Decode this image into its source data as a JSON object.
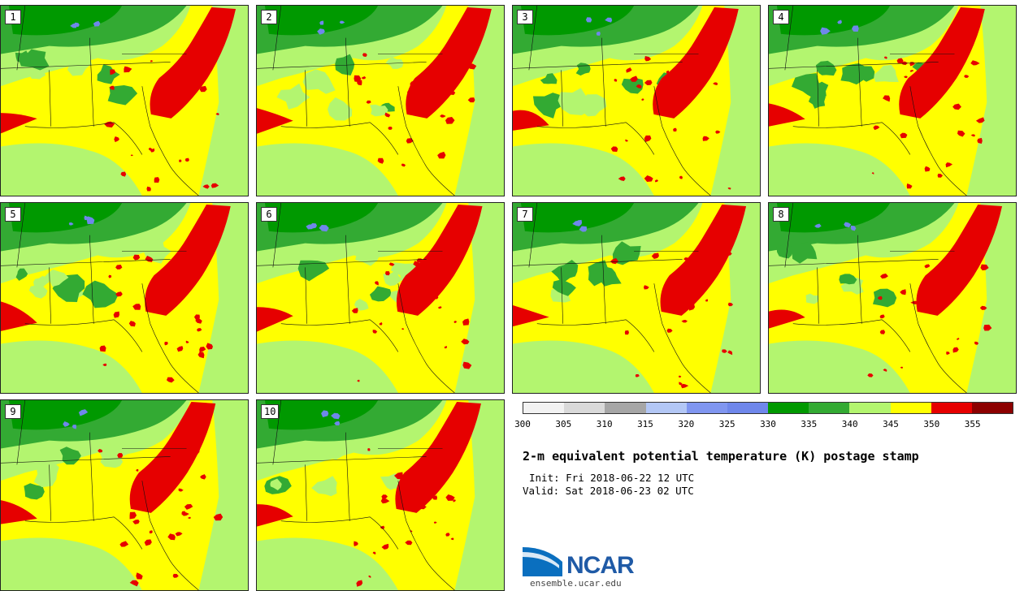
{
  "panels": [
    {
      "label": "1"
    },
    {
      "label": "2"
    },
    {
      "label": "3"
    },
    {
      "label": "4"
    },
    {
      "label": "5"
    },
    {
      "label": "6"
    },
    {
      "label": "7"
    },
    {
      "label": "8"
    },
    {
      "label": "9"
    },
    {
      "label": "10"
    }
  ],
  "colorbar": {
    "colors": [
      "#f2f2f2",
      "#d9d9d9",
      "#a6a6a6",
      "#b3c7f5",
      "#8096f0",
      "#6f87eb",
      "#009900",
      "#33aa33",
      "#b3f56f",
      "#ffff00",
      "#e60000",
      "#8c0000"
    ],
    "ticks": [
      "300",
      "305",
      "310",
      "315",
      "320",
      "325",
      "330",
      "335",
      "340",
      "345",
      "350",
      "355"
    ]
  },
  "title": "2-m equivalent potential temperature (K) postage stamp",
  "init": "Init: Fri 2018-06-22 12 UTC",
  "valid": "Valid: Sat 2018-06-23 02 UTC",
  "logo_text": "NCAR",
  "website": "ensemble.ucar.edu"
}
